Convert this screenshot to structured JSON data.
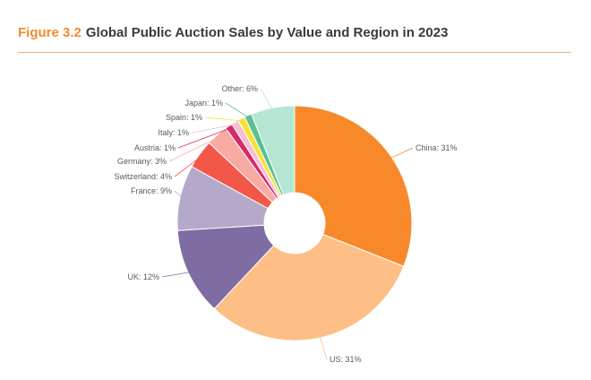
{
  "figure": {
    "number": "Figure 3.2",
    "title": "Global Public Auction Sales by Value and Region in 2023"
  },
  "chart_data": {
    "type": "pie",
    "donut": true,
    "unit": "%",
    "slices": [
      {
        "label": "China: 31%",
        "name": "China",
        "value": 31,
        "color": "#f7892b"
      },
      {
        "label": "US: 31%",
        "name": "US",
        "value": 31,
        "color": "#fdbf85"
      },
      {
        "label": "UK: 12%",
        "name": "UK",
        "value": 12,
        "color": "#7f6ca3"
      },
      {
        "label": "France: 9%",
        "name": "France",
        "value": 9,
        "color": "#b4a9cb"
      },
      {
        "label": "Switzerland: 4%",
        "name": "Switzerland",
        "value": 4,
        "color": "#f2574a"
      },
      {
        "label": "Germany: 3%",
        "name": "Germany",
        "value": 3,
        "color": "#f9aaa3"
      },
      {
        "label": "Austria: 1%",
        "name": "Austria",
        "value": 1,
        "color": "#d42b6a"
      },
      {
        "label": "Italy: 1%",
        "name": "Italy",
        "value": 1,
        "color": "#f7bfd6"
      },
      {
        "label": "Spain: 1%",
        "name": "Spain",
        "value": 1,
        "color": "#f8e23a"
      },
      {
        "label": "Japan: 1%",
        "name": "Japan",
        "value": 1,
        "color": "#5bbf95"
      },
      {
        "label": "Other: 6%",
        "name": "Other",
        "value": 6,
        "color": "#b5e6d4"
      }
    ]
  }
}
